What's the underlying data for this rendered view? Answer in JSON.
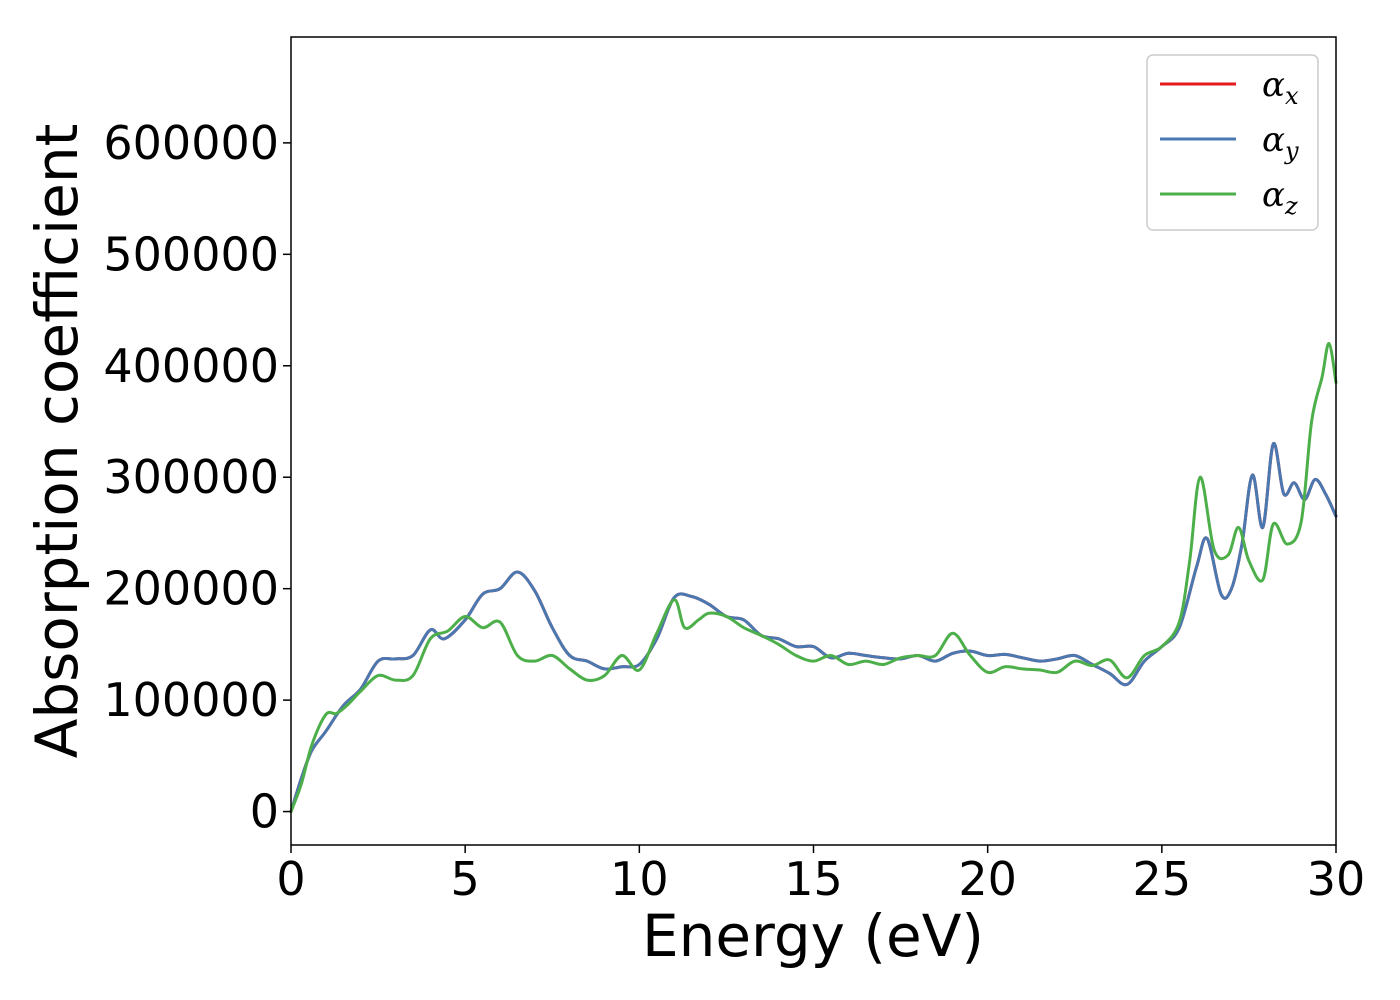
{
  "chart_data": {
    "type": "line",
    "title": "",
    "xlabel": "Energy (eV)",
    "ylabel": "Absorption coefficient",
    "xlim": [
      0,
      30
    ],
    "ylim": [
      -30000,
      695000
    ],
    "xticks": [
      0,
      5,
      10,
      15,
      20,
      25,
      30
    ],
    "yticks": [
      0,
      100000,
      200000,
      300000,
      400000,
      500000,
      600000
    ],
    "xtick_labels": [
      "0",
      "5",
      "10",
      "15",
      "20",
      "25",
      "30"
    ],
    "ytick_labels": [
      "0",
      "100000",
      "200000",
      "300000",
      "400000",
      "500000",
      "600000"
    ],
    "grid": false,
    "legend_position": "top-right",
    "series": [
      {
        "name": "αx",
        "legend_base": "α",
        "legend_sub": "x",
        "color": "#e41a1c",
        "x": [
          0,
          0.3,
          0.6,
          1.0,
          1.5,
          2.0,
          2.5,
          3.0,
          3.5,
          4.0,
          4.4,
          5.0,
          5.5,
          6.0,
          6.5,
          7.0,
          7.5,
          8.0,
          8.5,
          9.0,
          9.5,
          10.0,
          10.5,
          11.0,
          11.5,
          12.0,
          12.5,
          13.0,
          13.5,
          14.0,
          14.5,
          15.0,
          15.5,
          16.0,
          16.5,
          17.0,
          17.5,
          18.0,
          18.5,
          19.0,
          19.5,
          20.0,
          20.5,
          21.0,
          21.5,
          22.0,
          22.5,
          23.0,
          23.5,
          24.0,
          24.5,
          25.0,
          25.5,
          26.0,
          26.3,
          26.7,
          27.0,
          27.3,
          27.6,
          27.9,
          28.2,
          28.5,
          28.8,
          29.1,
          29.4,
          29.7,
          30.0
        ],
        "y": [
          0,
          30000,
          55000,
          72000,
          95000,
          110000,
          135000,
          137000,
          140000,
          163000,
          155000,
          172000,
          195000,
          200000,
          215000,
          198000,
          165000,
          140000,
          135000,
          128000,
          130000,
          132000,
          155000,
          192000,
          193000,
          186000,
          175000,
          172000,
          158000,
          155000,
          148000,
          148000,
          138000,
          142000,
          140000,
          138000,
          137000,
          140000,
          135000,
          142000,
          144000,
          140000,
          141000,
          138000,
          135000,
          137000,
          140000,
          132000,
          124000,
          114000,
          135000,
          148000,
          165000,
          220000,
          245000,
          195000,
          200000,
          240000,
          302000,
          255000,
          330000,
          285000,
          295000,
          280000,
          298000,
          285000,
          265000
        ]
      },
      {
        "name": "αy",
        "legend_base": "α",
        "legend_sub": "y",
        "color": "#4a78b0",
        "x": [
          0,
          0.3,
          0.6,
          1.0,
          1.5,
          2.0,
          2.5,
          3.0,
          3.5,
          4.0,
          4.4,
          5.0,
          5.5,
          6.0,
          6.5,
          7.0,
          7.5,
          8.0,
          8.5,
          9.0,
          9.5,
          10.0,
          10.5,
          11.0,
          11.5,
          12.0,
          12.5,
          13.0,
          13.5,
          14.0,
          14.5,
          15.0,
          15.5,
          16.0,
          16.5,
          17.0,
          17.5,
          18.0,
          18.5,
          19.0,
          19.5,
          20.0,
          20.5,
          21.0,
          21.5,
          22.0,
          22.5,
          23.0,
          23.5,
          24.0,
          24.5,
          25.0,
          25.5,
          26.0,
          26.3,
          26.7,
          27.0,
          27.3,
          27.6,
          27.9,
          28.2,
          28.5,
          28.8,
          29.1,
          29.4,
          29.7,
          30.0
        ],
        "y": [
          0,
          30000,
          55000,
          72000,
          95000,
          110000,
          135000,
          137000,
          140000,
          163000,
          155000,
          172000,
          195000,
          200000,
          215000,
          198000,
          165000,
          140000,
          135000,
          128000,
          130000,
          132000,
          155000,
          192000,
          193000,
          186000,
          175000,
          172000,
          158000,
          155000,
          148000,
          148000,
          138000,
          142000,
          140000,
          138000,
          137000,
          140000,
          135000,
          142000,
          144000,
          140000,
          141000,
          138000,
          135000,
          137000,
          140000,
          132000,
          124000,
          114000,
          135000,
          148000,
          165000,
          220000,
          245000,
          195000,
          200000,
          240000,
          302000,
          255000,
          330000,
          285000,
          295000,
          280000,
          298000,
          285000,
          265000
        ]
      },
      {
        "name": "αz",
        "legend_base": "α",
        "legend_sub": "z",
        "color": "#4daf4a",
        "x": [
          0,
          0.3,
          0.6,
          1.0,
          1.3,
          1.6,
          2.0,
          2.5,
          3.0,
          3.5,
          4.0,
          4.5,
          5.0,
          5.5,
          6.0,
          6.5,
          7.0,
          7.5,
          8.0,
          8.5,
          9.0,
          9.5,
          10.0,
          10.5,
          11.0,
          11.3,
          11.7,
          12.0,
          12.5,
          13.0,
          13.5,
          14.0,
          14.5,
          15.0,
          15.5,
          16.0,
          16.5,
          17.0,
          17.5,
          18.0,
          18.5,
          19.0,
          19.5,
          20.0,
          20.5,
          21.0,
          21.5,
          22.0,
          22.5,
          23.0,
          23.5,
          24.0,
          24.5,
          25.0,
          25.5,
          25.8,
          26.1,
          26.5,
          26.9,
          27.2,
          27.5,
          27.9,
          28.2,
          28.6,
          29.0,
          29.3,
          29.6,
          29.8,
          30.0
        ],
        "y": [
          0,
          25000,
          60000,
          87000,
          88000,
          95000,
          108000,
          122000,
          118000,
          122000,
          155000,
          162000,
          175000,
          165000,
          170000,
          140000,
          135000,
          140000,
          128000,
          118000,
          122000,
          140000,
          127000,
          160000,
          190000,
          165000,
          172000,
          178000,
          175000,
          165000,
          158000,
          150000,
          140000,
          135000,
          140000,
          132000,
          135000,
          132000,
          138000,
          140000,
          140000,
          160000,
          140000,
          125000,
          130000,
          128000,
          127000,
          125000,
          135000,
          131000,
          136000,
          120000,
          140000,
          148000,
          170000,
          225000,
          300000,
          235000,
          230000,
          255000,
          225000,
          208000,
          258000,
          240000,
          260000,
          350000,
          390000,
          420000,
          385000
        ]
      }
    ]
  }
}
